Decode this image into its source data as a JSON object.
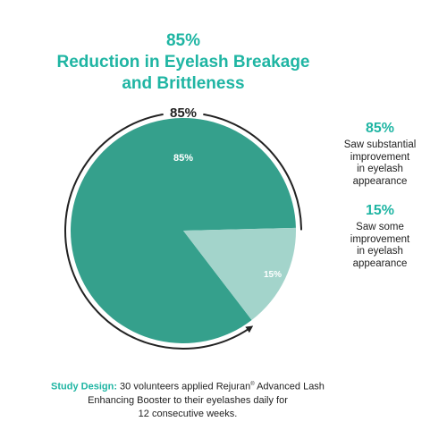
{
  "title": {
    "line1": "85%",
    "line2": "Reduction in Eyelash Breakage",
    "line3": "and Brittleness"
  },
  "chart_data": {
    "type": "pie",
    "categories": [
      "Saw substantial improvement in eyelash appearance",
      "Saw some improvement in eyelash appearance"
    ],
    "values": [
      85,
      15
    ],
    "slice_labels": [
      "85%",
      "15%"
    ],
    "ring_label": "85%",
    "colors": [
      "#35a08c",
      "#a3d4cb"
    ],
    "legend_position": "right"
  },
  "legend": [
    {
      "pct": "85%",
      "text": [
        "Saw substantial",
        "improvement",
        "in eyelash",
        "appearance"
      ]
    },
    {
      "pct": "15%",
      "text": [
        "Saw some",
        "improvement",
        "in eyelash",
        "appearance"
      ]
    }
  ],
  "footer": {
    "label": "Study Design:",
    "line1": " 30 volunteers applied Rejuran",
    "reg": "®",
    "line1b": " Advanced Lash",
    "line2": "Enhancing Booster to their eyelashes daily for",
    "line3": "12 consecutive weeks."
  }
}
